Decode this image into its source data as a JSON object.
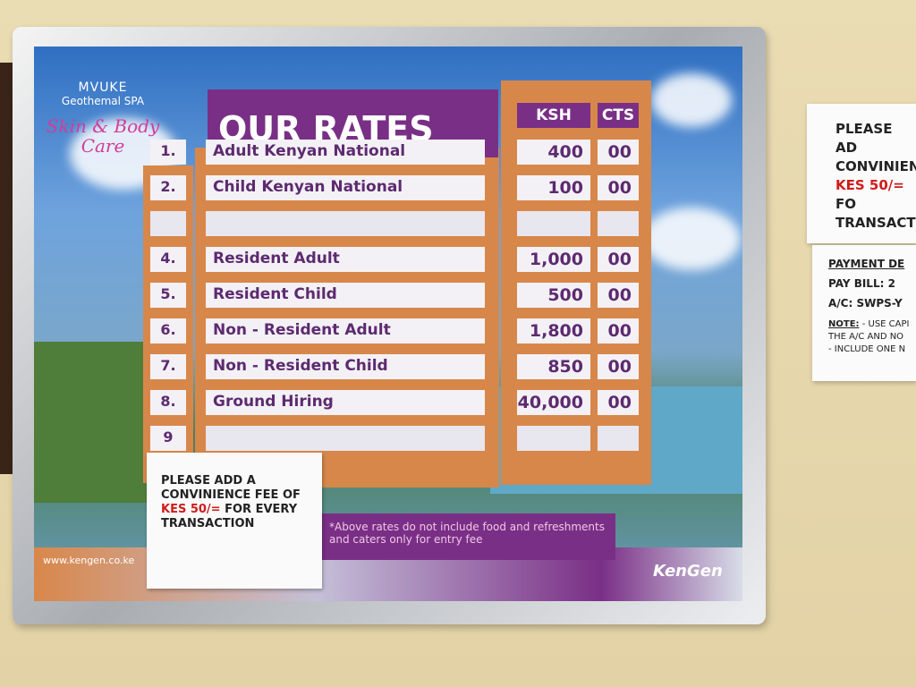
{
  "logo": {
    "brand": "MVUKE",
    "subtitle": "Geothemal SPA",
    "tagline": "Skin & Body Care"
  },
  "board": {
    "title": "OUR RATES",
    "columns": {
      "ksh": "KSH",
      "cts": "CTS"
    },
    "rows": [
      {
        "no": "1.",
        "label": "Adult Kenyan National",
        "ksh": "400",
        "cts": "00"
      },
      {
        "no": "2.",
        "label": "Child Kenyan National",
        "ksh": "100",
        "cts": "00"
      },
      {},
      {
        "no": "4.",
        "label": "Resident Adult",
        "ksh": "1,000",
        "cts": "00"
      },
      {
        "no": "5.",
        "label": "Resident Child",
        "ksh": "500",
        "cts": "00"
      },
      {
        "no": "6.",
        "label": "Non - Resident Adult",
        "ksh": "1,800",
        "cts": "00"
      },
      {
        "no": "7.",
        "label": "Non - Resident Child",
        "ksh": "850",
        "cts": "00"
      },
      {
        "no": "8.",
        "label": "Ground Hiring",
        "ksh": "40,000",
        "cts": "00"
      },
      {
        "no": "9"
      }
    ],
    "footnote": "*Above rates do not include food and refreshments and caters only for entry fee",
    "website": "www.kengen.co.ke",
    "company": "KenGen"
  },
  "notice": {
    "lines": [
      "PLEASE ADD A",
      "CONVINIENCE FEE OF"
    ],
    "fee": "KES 50/=",
    "rest": "FOR EVERY",
    "last": "TRANSACTION"
  },
  "wall_notice": {
    "lines": [
      "PLEASE AD",
      "CONVINIEN"
    ],
    "fee": "KES 50/=",
    "rest": "FO",
    "last": "TRANSACT"
  },
  "payment": {
    "title": "PAYMENT DE",
    "paybill": "PAY BILL:  2",
    "account": "A/C: SWPS-Y",
    "note_label": "NOTE:",
    "note": [
      "- USE CAPI",
      "THE A/C AND NO",
      "- INCLUDE ONE N"
    ]
  }
}
